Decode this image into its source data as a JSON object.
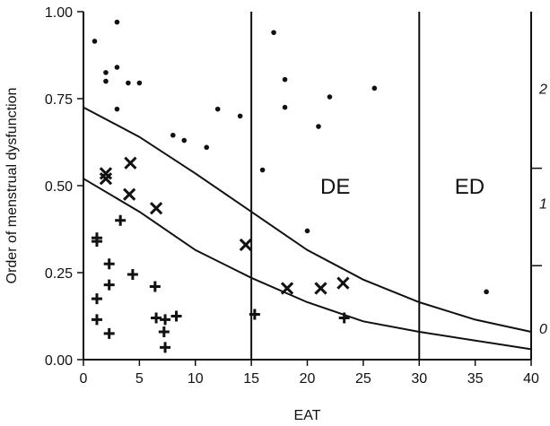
{
  "chart_data": {
    "type": "scatter",
    "xlabel": "EAT",
    "ylabel": "Order of menstrual dysfunction",
    "xlim": [
      0,
      40
    ],
    "ylim": [
      0,
      1
    ],
    "x_ticks": [
      {
        "value": 0,
        "label": "0"
      },
      {
        "value": 5,
        "label": "5"
      },
      {
        "value": 10,
        "label": "10"
      },
      {
        "value": 15,
        "label": "15"
      },
      {
        "value": 20,
        "label": "20"
      },
      {
        "value": 25,
        "label": "25"
      },
      {
        "value": 30,
        "label": "30"
      },
      {
        "value": 35,
        "label": "35"
      },
      {
        "value": 40,
        "label": "40"
      }
    ],
    "y_ticks": [
      {
        "value": 0,
        "label": "0.00"
      },
      {
        "value": 0.25,
        "label": "0.25"
      },
      {
        "value": 0.5,
        "label": "0.50"
      },
      {
        "value": 0.75,
        "label": "0.75"
      },
      {
        "value": 1,
        "label": "1.00"
      }
    ],
    "right_axis_labels": [
      {
        "y": 0.78,
        "label": "2"
      },
      {
        "y": 0.45,
        "label": "1"
      },
      {
        "y": 0.09,
        "label": "0"
      }
    ],
    "right_axis_ticks": [
      0.55,
      0.27
    ],
    "vertical_lines": [
      15,
      30
    ],
    "region_labels": [
      {
        "x": 22.5,
        "y": 0.5,
        "label": "DE"
      },
      {
        "x": 34.5,
        "y": 0.5,
        "label": "ED"
      }
    ],
    "boundary_curves": [
      {
        "x": [
          0,
          5,
          10,
          15,
          20,
          25,
          30,
          35,
          40
        ],
        "y": [
          0.725,
          0.64,
          0.535,
          0.425,
          0.315,
          0.23,
          0.165,
          0.115,
          0.08
        ]
      },
      {
        "x": [
          0,
          5,
          10,
          15,
          20,
          25,
          30,
          35,
          40
        ],
        "y": [
          0.52,
          0.425,
          0.315,
          0.235,
          0.165,
          0.11,
          0.08,
          0.055,
          0.03
        ]
      }
    ],
    "series": [
      {
        "marker": "dot",
        "points": [
          [
            1,
            0.915
          ],
          [
            2,
            0.825
          ],
          [
            2,
            0.8
          ],
          [
            3,
            0.97
          ],
          [
            3,
            0.84
          ],
          [
            3,
            0.72
          ],
          [
            4,
            0.795
          ],
          [
            5,
            0.795
          ],
          [
            8,
            0.645
          ],
          [
            9,
            0.63
          ],
          [
            11,
            0.61
          ],
          [
            12,
            0.72
          ],
          [
            14,
            0.7
          ],
          [
            16,
            0.545
          ],
          [
            17,
            0.94
          ],
          [
            18,
            0.805
          ],
          [
            18,
            0.725
          ],
          [
            20,
            0.37
          ],
          [
            21,
            0.67
          ],
          [
            22,
            0.755
          ],
          [
            26,
            0.78
          ],
          [
            36,
            0.195
          ]
        ]
      },
      {
        "marker": "x",
        "points": [
          [
            2,
            0.535
          ],
          [
            2,
            0.52
          ],
          [
            4.2,
            0.565
          ],
          [
            4.1,
            0.475
          ],
          [
            6.5,
            0.435
          ],
          [
            14.5,
            0.33
          ],
          [
            18.2,
            0.205
          ],
          [
            21.2,
            0.205
          ],
          [
            23.2,
            0.22
          ]
        ]
      },
      {
        "marker": "plus",
        "points": [
          [
            1.2,
            0.35
          ],
          [
            1.2,
            0.34
          ],
          [
            3.3,
            0.4
          ],
          [
            2.3,
            0.275
          ],
          [
            4.4,
            0.245
          ],
          [
            1.2,
            0.175
          ],
          [
            2.3,
            0.215
          ],
          [
            6.4,
            0.21
          ],
          [
            1.2,
            0.115
          ],
          [
            2.3,
            0.075
          ],
          [
            6.5,
            0.12
          ],
          [
            7.3,
            0.115
          ],
          [
            8.3,
            0.125
          ],
          [
            7.2,
            0.08
          ],
          [
            7.3,
            0.035
          ],
          [
            15.3,
            0.13
          ],
          [
            23.3,
            0.12
          ]
        ]
      }
    ]
  }
}
